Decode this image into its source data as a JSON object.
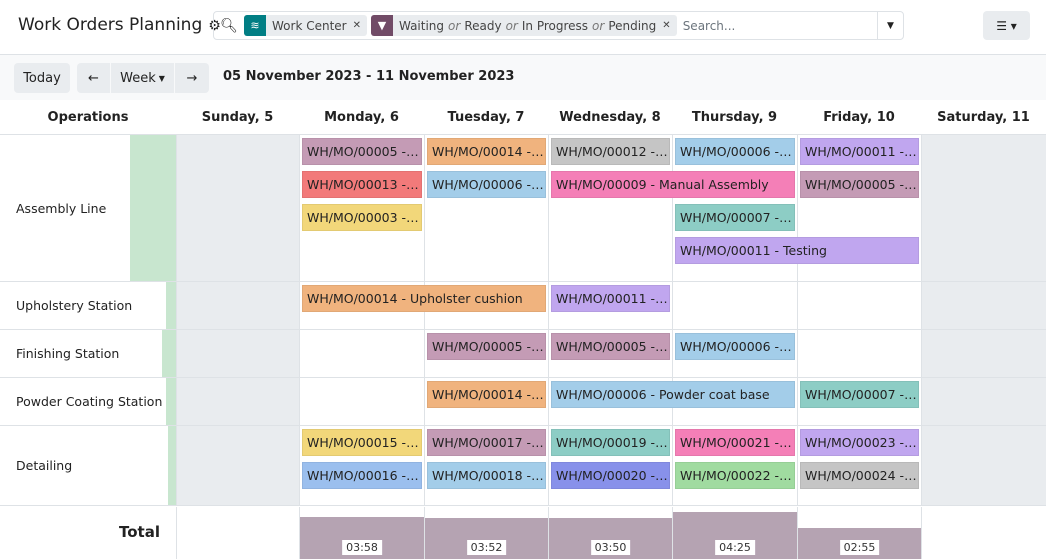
{
  "header": {
    "title": "Work Orders Planning",
    "gear_icon": "gear-icon"
  },
  "search": {
    "facets": [
      {
        "icon": "layers-icon",
        "color": "#017e84",
        "label": "Work Center"
      },
      {
        "icon": "filter-icon",
        "color": "#714b67",
        "values": [
          "Waiting",
          "Ready",
          "In Progress",
          "Pending"
        ],
        "sep": "or"
      }
    ],
    "placeholder": "Search..."
  },
  "toolbar": {
    "today": "Today",
    "prev": "←",
    "scale": "Week",
    "next": "→",
    "range": "05 November 2023 - 11 November 2023"
  },
  "columns": {
    "operations": "Operations",
    "days": [
      "Sunday, 5",
      "Monday, 6",
      "Tuesday, 7",
      "Wednesday, 8",
      "Thursday, 9",
      "Friday, 10",
      "Saturday, 11"
    ]
  },
  "rows": [
    {
      "name": "Assembly Line",
      "items": [
        {
          "label": "WH/MO/00005 - ...",
          "start": 1,
          "end": 1,
          "color": "#c49bb5"
        },
        {
          "label": "WH/MO/00013 - ...",
          "start": 1,
          "end": 1,
          "color": "#f27a7a"
        },
        {
          "label": "WH/MO/00003 - ...",
          "start": 1,
          "end": 1,
          "color": "#f2d77a"
        },
        {
          "label": "WH/MO/00014 - ...",
          "start": 2,
          "end": 2,
          "color": "#f0b37e"
        },
        {
          "label": "WH/MO/00006 - ...",
          "start": 2,
          "end": 2,
          "color": "#a3cde9"
        },
        {
          "label": "WH/MO/00012 - ...",
          "start": 3,
          "end": 3,
          "color": "#c5c5c5"
        },
        {
          "label": "WH/MO/00009 - Manual Assembly",
          "start": 3,
          "end": 4,
          "color": "#f47fb7"
        },
        {
          "label": "WH/MO/00006 - ...",
          "start": 4,
          "end": 4,
          "color": "#a3cde9"
        },
        {
          "label": "WH/MO/00007 - ...",
          "start": 4,
          "end": 4,
          "color": "#8dcdc5"
        },
        {
          "label": "WH/MO/00011 - Testing",
          "start": 4,
          "end": 5,
          "color": "#c0a6ef"
        },
        {
          "label": "WH/MO/00011 - ...",
          "start": 5,
          "end": 5,
          "color": "#c0a6ef"
        },
        {
          "label": "WH/MO/00005 - ...",
          "start": 5,
          "end": 5,
          "color": "#c49bb5"
        }
      ]
    },
    {
      "name": "Upholstery Station",
      "items": [
        {
          "label": "WH/MO/00014 - Upholster cushion",
          "start": 1,
          "end": 2,
          "color": "#f0b37e"
        },
        {
          "label": "WH/MO/00011 - ...",
          "start": 3,
          "end": 3,
          "color": "#c0a6ef"
        }
      ]
    },
    {
      "name": "Finishing Station",
      "items": [
        {
          "label": "WH/MO/00005 - ...",
          "start": 2,
          "end": 2,
          "color": "#c49bb5"
        },
        {
          "label": "WH/MO/00005 - ...",
          "start": 3,
          "end": 3,
          "color": "#c49bb5"
        },
        {
          "label": "WH/MO/00006 - ...",
          "start": 4,
          "end": 4,
          "color": "#a3cde9"
        }
      ]
    },
    {
      "name": "Powder Coating Station",
      "items": [
        {
          "label": "WH/MO/00014 - ...",
          "start": 2,
          "end": 2,
          "color": "#f0b37e"
        },
        {
          "label": "WH/MO/00006 - Powder coat base",
          "start": 3,
          "end": 4,
          "color": "#a3cde9"
        },
        {
          "label": "WH/MO/00007 - ...",
          "start": 5,
          "end": 5,
          "color": "#8dcdc5"
        }
      ]
    },
    {
      "name": "Detailing",
      "items": [
        {
          "label": "WH/MO/00015 - ...",
          "start": 1,
          "end": 1,
          "color": "#f2d77a"
        },
        {
          "label": "WH/MO/00016 - ...",
          "start": 1,
          "end": 1,
          "color": "#9bbfee"
        },
        {
          "label": "WH/MO/00017 - ...",
          "start": 2,
          "end": 2,
          "color": "#c49bb5"
        },
        {
          "label": "WH/MO/00018 - ...",
          "start": 2,
          "end": 2,
          "color": "#a3cde9"
        },
        {
          "label": "WH/MO/00019 - ...",
          "start": 3,
          "end": 3,
          "color": "#8dcdc5"
        },
        {
          "label": "WH/MO/00020 - ...",
          "start": 3,
          "end": 3,
          "color": "#8891ea"
        },
        {
          "label": "WH/MO/00021 - ...",
          "start": 4,
          "end": 4,
          "color": "#f47fb7"
        },
        {
          "label": "WH/MO/00022 - ...",
          "start": 4,
          "end": 4,
          "color": "#a0dba0"
        },
        {
          "label": "WH/MO/00023 - ...",
          "start": 5,
          "end": 5,
          "color": "#c0a6ef"
        },
        {
          "label": "WH/MO/00024 - ...",
          "start": 5,
          "end": 5,
          "color": "#c5c5c5"
        }
      ]
    }
  ],
  "total": {
    "label": "Total",
    "values": [
      null,
      "03:58",
      "03:52",
      "03:50",
      "04:25",
      "02:55",
      null
    ]
  }
}
